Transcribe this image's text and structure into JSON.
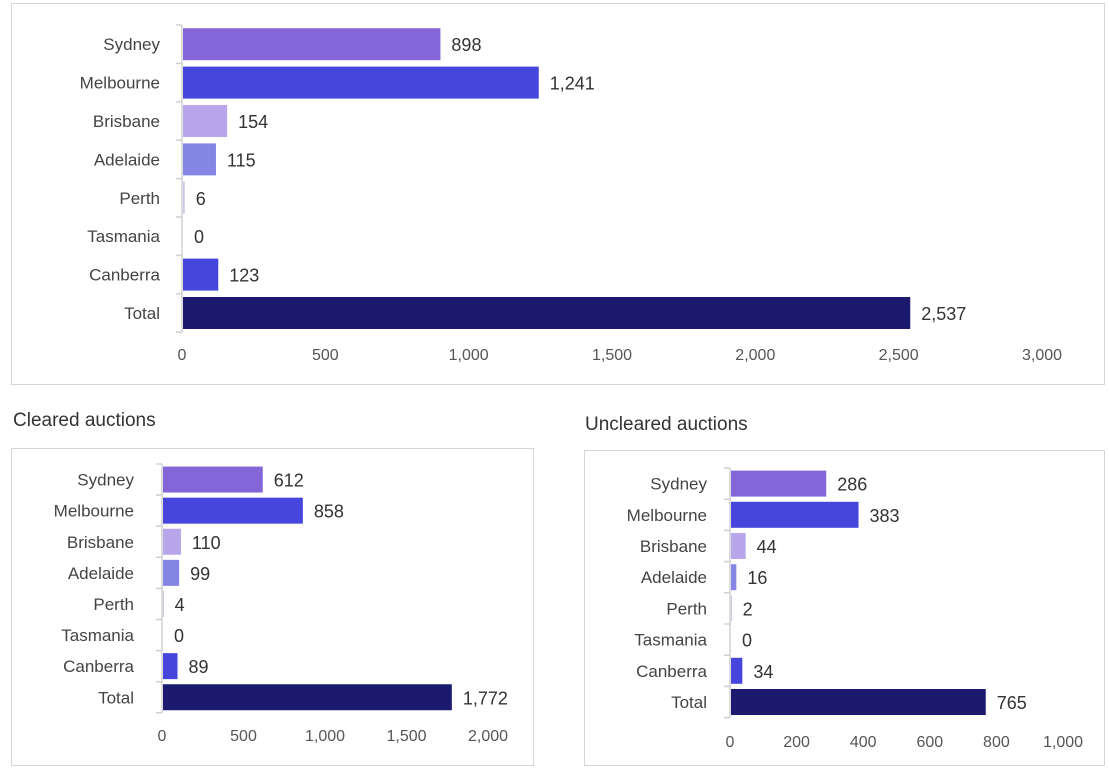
{
  "chart_data": [
    {
      "type": "bar",
      "orientation": "horizontal",
      "title": "",
      "categories": [
        "Sydney",
        "Melbourne",
        "Brisbane",
        "Adelaide",
        "Perth",
        "Tasmania",
        "Canberra",
        "Total"
      ],
      "values": [
        898,
        1241,
        154,
        115,
        6,
        0,
        123,
        2537
      ],
      "value_labels": [
        "898",
        "1,241",
        "154",
        "115",
        "6",
        "0",
        "123",
        "2,537"
      ],
      "xlim": [
        0,
        3000
      ],
      "ticks": [
        "0",
        "500",
        "1,000",
        "1,500",
        "2,000",
        "2,500",
        "3,000"
      ],
      "grid": false,
      "legend": "none"
    },
    {
      "type": "bar",
      "orientation": "horizontal",
      "title": "Cleared auctions",
      "categories": [
        "Sydney",
        "Melbourne",
        "Brisbane",
        "Adelaide",
        "Perth",
        "Tasmania",
        "Canberra",
        "Total"
      ],
      "values": [
        612,
        858,
        110,
        99,
        4,
        0,
        89,
        1772
      ],
      "value_labels": [
        "612",
        "858",
        "110",
        "99",
        "4",
        "0",
        "89",
        "1,772"
      ],
      "xlim": [
        0,
        2000
      ],
      "ticks": [
        "0",
        "500",
        "1,000",
        "1,500",
        "2,000"
      ],
      "grid": false,
      "legend": "none"
    },
    {
      "type": "bar",
      "orientation": "horizontal",
      "title": "Uncleared auctions",
      "categories": [
        "Sydney",
        "Melbourne",
        "Brisbane",
        "Adelaide",
        "Perth",
        "Tasmania",
        "Canberra",
        "Total"
      ],
      "values": [
        286,
        383,
        44,
        16,
        2,
        0,
        34,
        765
      ],
      "value_labels": [
        "286",
        "383",
        "44",
        "16",
        "2",
        "0",
        "34",
        "765"
      ],
      "xlim": [
        0,
        1000
      ],
      "ticks": [
        "0",
        "200",
        "400",
        "600",
        "800",
        "1,000"
      ],
      "grid": false,
      "legend": "none"
    }
  ],
  "colors": {
    "Sydney": "#8466d8",
    "Melbourne": "#4646dc",
    "Brisbane": "#b7a6ea",
    "Adelaide": "#8585e6",
    "Perth": "#c7c7f0",
    "Tasmania": "#c7c7f0",
    "Canberra": "#4646dc",
    "Total": "#1c1a6e",
    "axis": "#d0d0d0"
  }
}
